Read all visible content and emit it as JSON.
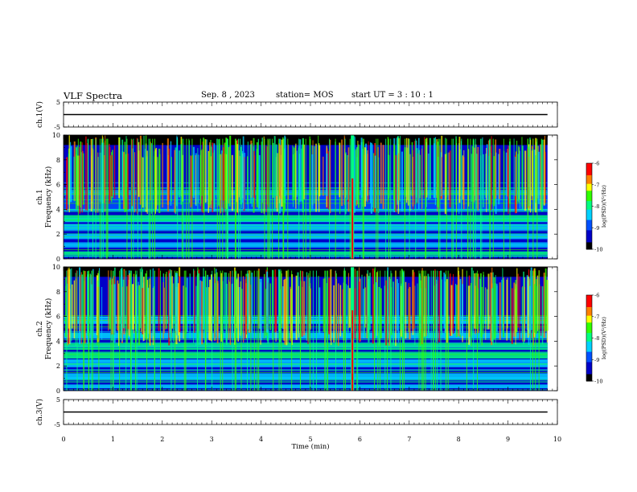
{
  "header": {
    "title": "VLF Spectra",
    "date": "Sep. 8 , 2023",
    "station": "station= MOS",
    "start_ut": "start UT = 3 : 10 : 1"
  },
  "colors": {
    "background": "#ffffff",
    "spectrogram_floor": "#000000",
    "trace": "#000000",
    "colormap": [
      "#000000",
      "#0000c8",
      "#0050ff",
      "#00d2ff",
      "#00ff80",
      "#30ff00",
      "#ffff00",
      "#ff8000",
      "#ff0000",
      "#ffffff"
    ]
  },
  "chart_data": [
    {
      "type": "line",
      "panel": "ch1-waveform",
      "ylabel": "ch.1(V)",
      "ylim": [
        -5,
        5
      ],
      "yticks": [
        "5",
        "-5"
      ],
      "xlim": [
        0,
        10
      ],
      "series": [
        {
          "x": [
            0,
            9.8
          ],
          "y": [
            0,
            0
          ]
        }
      ]
    },
    {
      "type": "heatmap",
      "panel": "ch1-spectrogram",
      "ylabel": "ch.1 Frequency (kHz)",
      "ylim": [
        0,
        10
      ],
      "yticks": [
        "0",
        "2",
        "4",
        "6",
        "8",
        "10"
      ],
      "xlim": [
        0,
        10
      ],
      "data_extent_min": 9.8,
      "colorbar": {
        "label": "log(PSD)(V²/Hz)",
        "range": [
          -10,
          -6
        ],
        "ticks": [
          "-6",
          "-7",
          "-8",
          "-9",
          "-10"
        ]
      }
    },
    {
      "type": "heatmap",
      "panel": "ch2-spectrogram",
      "ylabel": "ch.2 Frequency (kHz)",
      "ylim": [
        0,
        10
      ],
      "yticks": [
        "0",
        "2",
        "4",
        "6",
        "8",
        "10"
      ],
      "xlim": [
        0,
        10
      ],
      "data_extent_min": 9.8,
      "colorbar": {
        "label": "log(PSD)(V²/Hz)",
        "range": [
          -10,
          -6
        ],
        "ticks": [
          "-6",
          "-7",
          "-8",
          "-9",
          "-10"
        ]
      }
    },
    {
      "type": "line",
      "panel": "ch3-waveform",
      "ylabel": "ch.3(V)",
      "ylim": [
        -5,
        5
      ],
      "yticks": [
        "5",
        "-5"
      ],
      "xlim": [
        0,
        10
      ],
      "xlabel": "Time (min)",
      "xticks": [
        "0",
        "1",
        "2",
        "3",
        "4",
        "5",
        "6",
        "7",
        "8",
        "9",
        "10"
      ],
      "series": [
        {
          "x": [
            0,
            9.8
          ],
          "y": [
            0,
            0
          ]
        }
      ]
    }
  ]
}
